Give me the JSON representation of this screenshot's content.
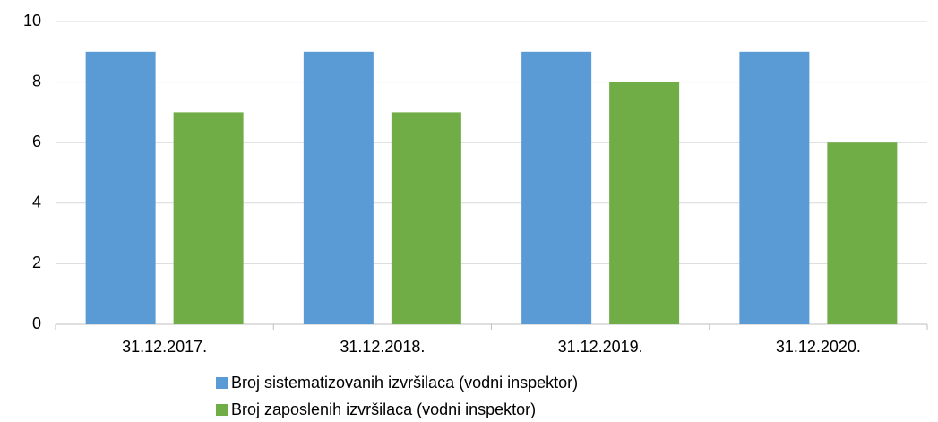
{
  "chart_data": {
    "type": "bar",
    "categories": [
      "31.12.2017.",
      "31.12.2018.",
      "31.12.2019.",
      "31.12.2020."
    ],
    "series": [
      {
        "name": "Broj sistematizovanih izvršilaca (vodni inspektor)",
        "color": "#5b9bd5",
        "values": [
          9,
          9,
          9,
          9
        ]
      },
      {
        "name": "Broj zaposlenih izvršilaca (vodni inspektor)",
        "color": "#70ad47",
        "values": [
          7,
          7,
          8,
          6
        ]
      }
    ],
    "ylim": [
      0,
      10
    ],
    "yticks": [
      0,
      2,
      4,
      6,
      8,
      10
    ],
    "grid": true,
    "legend": "bottom"
  }
}
